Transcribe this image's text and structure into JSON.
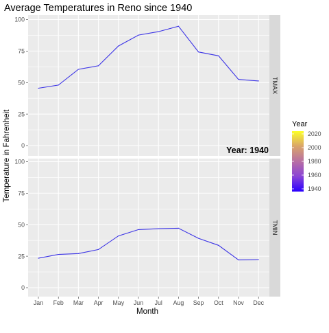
{
  "chart_data": {
    "type": "line",
    "title": "Average Temperatures in Reno since 1940",
    "xlabel": "Month",
    "ylabel": "Temperature in Fahrenheit",
    "annotation": "Year: 1940",
    "categories": [
      "Jan",
      "Feb",
      "Mar",
      "Apr",
      "May",
      "Jun",
      "Jul",
      "Aug",
      "Sep",
      "Oct",
      "Nov",
      "Dec"
    ],
    "ylim": [
      0,
      100
    ],
    "yticks": [
      0,
      25,
      50,
      75,
      100
    ],
    "grid": true,
    "series_color": "#3b33e6",
    "panels": [
      {
        "strip": "TMAX",
        "values": [
          45.5,
          48,
          60.5,
          63.3,
          79,
          87.7,
          90.4,
          94.7,
          74.3,
          71.2,
          52.5,
          51.3
        ]
      },
      {
        "strip": "TMIN",
        "values": [
          23.4,
          26.4,
          27.1,
          30.3,
          41.1,
          46.1,
          46.8,
          47.2,
          39.2,
          33.6,
          22,
          22.1
        ]
      }
    ],
    "legend": {
      "title": "Year",
      "placement": "right",
      "ticks": [
        2020,
        2000,
        1980,
        1960,
        1940
      ],
      "range": [
        1940,
        2020
      ],
      "color_low": "#0d0887",
      "color_mid": "#b12a90",
      "color_high": "#f0f921",
      "gradient_stops": [
        "#fcff2a",
        "#d9a46a",
        "#b86fa3",
        "#8a44d6",
        "#2a00ff"
      ]
    },
    "colors": {
      "panel_bg": "#ebebeb",
      "grid": "#ffffff",
      "strip_bg": "#d9d9d9",
      "axis_text": "#4d4d4d"
    }
  }
}
